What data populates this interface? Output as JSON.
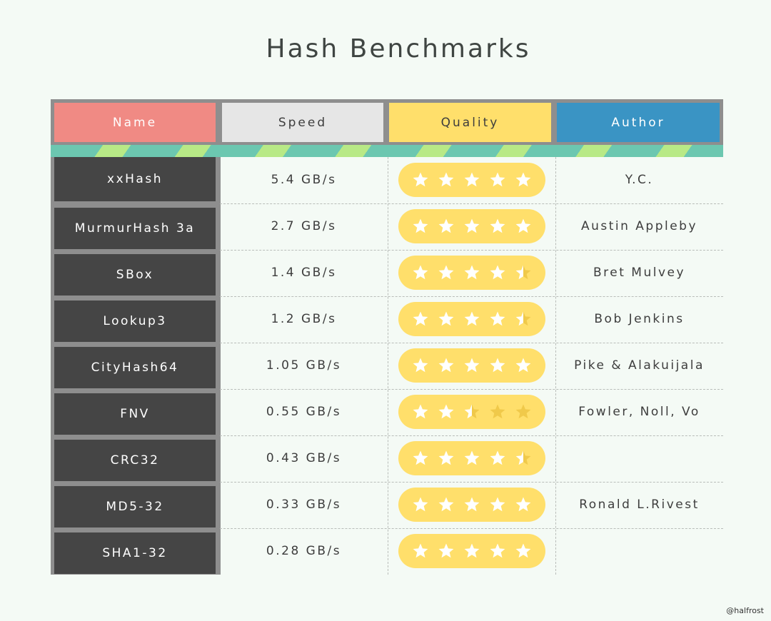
{
  "title": "Hash Benchmarks",
  "colors": {
    "name_header": "#f08a84",
    "speed_header": "#e6e6e6",
    "quality_header": "#ffdf6b",
    "author_header": "#3a94c4",
    "name_cell": "#454545",
    "star_full": "#ffffff",
    "star_empty": "#f0c94a"
  },
  "headers": {
    "name": "Name",
    "speed": "Speed",
    "quality": "Quality",
    "author": "Author"
  },
  "rows": [
    {
      "name": "xxHash",
      "speed": "5.4 GB/s",
      "quality": 5,
      "author": "Y.C."
    },
    {
      "name": "MurmurHash 3a",
      "speed": "2.7 GB/s",
      "quality": 5,
      "author": "Austin Appleby"
    },
    {
      "name": "SBox",
      "speed": "1.4 GB/s",
      "quality": 4.5,
      "author": "Bret Mulvey"
    },
    {
      "name": "Lookup3",
      "speed": "1.2 GB/s",
      "quality": 4.5,
      "author": "Bob Jenkins"
    },
    {
      "name": "CityHash64",
      "speed": "1.05 GB/s",
      "quality": 5,
      "author": "Pike & Alakuijala"
    },
    {
      "name": "FNV",
      "speed": "0.55 GB/s",
      "quality": 2.5,
      "author": "Fowler, Noll, Vo"
    },
    {
      "name": "CRC32",
      "speed": "0.43 GB/s",
      "quality": 4.5,
      "author": ""
    },
    {
      "name": "MD5-32",
      "speed": "0.33 GB/s",
      "quality": 5,
      "author": "Ronald L.Rivest"
    },
    {
      "name": "SHA1-32",
      "speed": "0.28 GB/s",
      "quality": 5,
      "author": ""
    }
  ],
  "credit": "@halfrost"
}
